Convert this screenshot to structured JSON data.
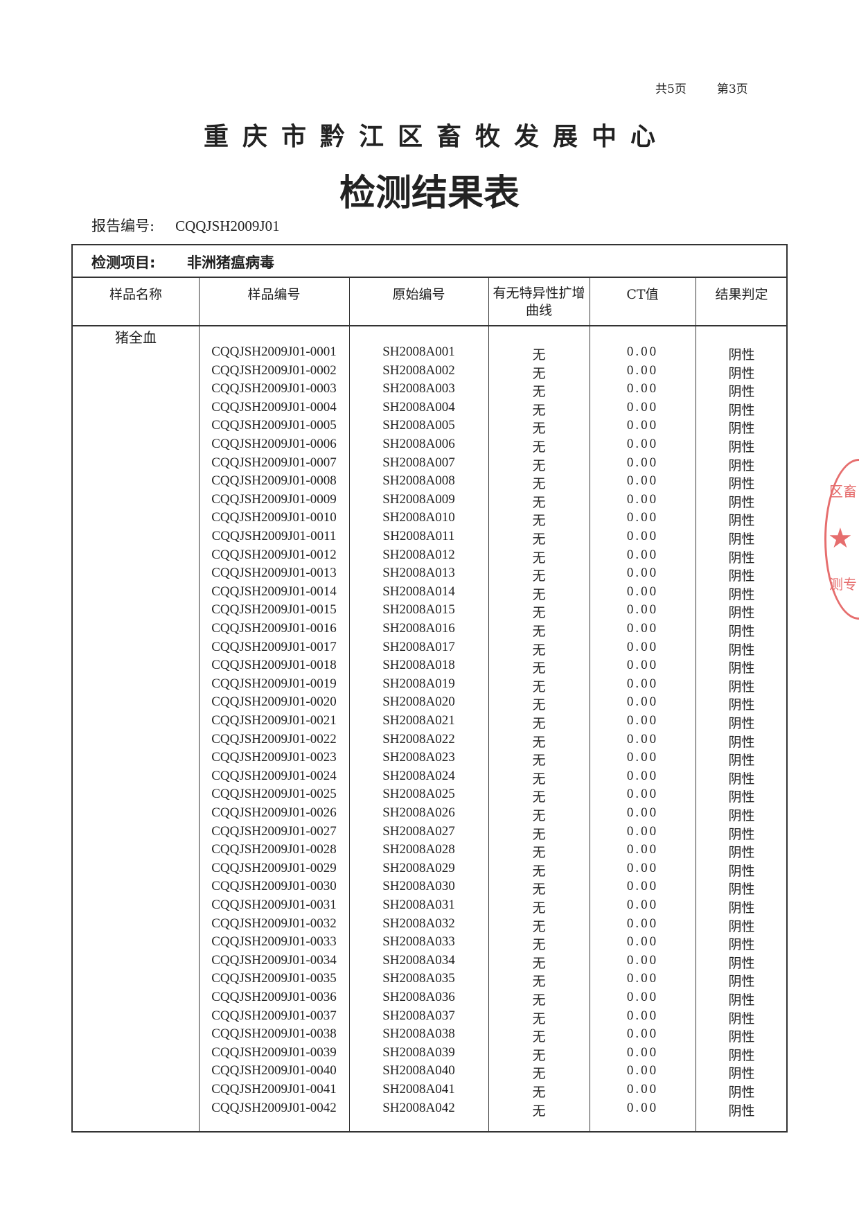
{
  "page_info": {
    "total": "共5页",
    "current": "第3页"
  },
  "organization": "重庆市黔江区畜牧发展中心",
  "title": "检测结果表",
  "report": {
    "label": "报告编号:",
    "value": "CQQJSH2009J01"
  },
  "test_item": {
    "label": "检测项目:",
    "value": "非洲猪瘟病毒"
  },
  "columns": [
    "样品名称",
    "样品编号",
    "原始编号",
    "有无特异性扩增曲线",
    "CT值",
    "结果判定"
  ],
  "sample_name": "猪全血",
  "rows": [
    [
      "CQQJSH2009J01-0001",
      "SH2008A001",
      "无",
      "0.00",
      "阴性"
    ],
    [
      "CQQJSH2009J01-0002",
      "SH2008A002",
      "无",
      "0.00",
      "阴性"
    ],
    [
      "CQQJSH2009J01-0003",
      "SH2008A003",
      "无",
      "0.00",
      "阴性"
    ],
    [
      "CQQJSH2009J01-0004",
      "SH2008A004",
      "无",
      "0.00",
      "阴性"
    ],
    [
      "CQQJSH2009J01-0005",
      "SH2008A005",
      "无",
      "0.00",
      "阴性"
    ],
    [
      "CQQJSH2009J01-0006",
      "SH2008A006",
      "无",
      "0.00",
      "阴性"
    ],
    [
      "CQQJSH2009J01-0007",
      "SH2008A007",
      "无",
      "0.00",
      "阴性"
    ],
    [
      "CQQJSH2009J01-0008",
      "SH2008A008",
      "无",
      "0.00",
      "阴性"
    ],
    [
      "CQQJSH2009J01-0009",
      "SH2008A009",
      "无",
      "0.00",
      "阴性"
    ],
    [
      "CQQJSH2009J01-0010",
      "SH2008A010",
      "无",
      "0.00",
      "阴性"
    ],
    [
      "CQQJSH2009J01-0011",
      "SH2008A011",
      "无",
      "0.00",
      "阴性"
    ],
    [
      "CQQJSH2009J01-0012",
      "SH2008A012",
      "无",
      "0.00",
      "阴性"
    ],
    [
      "CQQJSH2009J01-0013",
      "SH2008A013",
      "无",
      "0.00",
      "阴性"
    ],
    [
      "CQQJSH2009J01-0014",
      "SH2008A014",
      "无",
      "0.00",
      "阴性"
    ],
    [
      "CQQJSH2009J01-0015",
      "SH2008A015",
      "无",
      "0.00",
      "阴性"
    ],
    [
      "CQQJSH2009J01-0016",
      "SH2008A016",
      "无",
      "0.00",
      "阴性"
    ],
    [
      "CQQJSH2009J01-0017",
      "SH2008A017",
      "无",
      "0.00",
      "阴性"
    ],
    [
      "CQQJSH2009J01-0018",
      "SH2008A018",
      "无",
      "0.00",
      "阴性"
    ],
    [
      "CQQJSH2009J01-0019",
      "SH2008A019",
      "无",
      "0.00",
      "阴性"
    ],
    [
      "CQQJSH2009J01-0020",
      "SH2008A020",
      "无",
      "0.00",
      "阴性"
    ],
    [
      "CQQJSH2009J01-0021",
      "SH2008A021",
      "无",
      "0.00",
      "阴性"
    ],
    [
      "CQQJSH2009J01-0022",
      "SH2008A022",
      "无",
      "0.00",
      "阴性"
    ],
    [
      "CQQJSH2009J01-0023",
      "SH2008A023",
      "无",
      "0.00",
      "阴性"
    ],
    [
      "CQQJSH2009J01-0024",
      "SH2008A024",
      "无",
      "0.00",
      "阴性"
    ],
    [
      "CQQJSH2009J01-0025",
      "SH2008A025",
      "无",
      "0.00",
      "阴性"
    ],
    [
      "CQQJSH2009J01-0026",
      "SH2008A026",
      "无",
      "0.00",
      "阴性"
    ],
    [
      "CQQJSH2009J01-0027",
      "SH2008A027",
      "无",
      "0.00",
      "阴性"
    ],
    [
      "CQQJSH2009J01-0028",
      "SH2008A028",
      "无",
      "0.00",
      "阴性"
    ],
    [
      "CQQJSH2009J01-0029",
      "SH2008A029",
      "无",
      "0.00",
      "阴性"
    ],
    [
      "CQQJSH2009J01-0030",
      "SH2008A030",
      "无",
      "0.00",
      "阴性"
    ],
    [
      "CQQJSH2009J01-0031",
      "SH2008A031",
      "无",
      "0.00",
      "阴性"
    ],
    [
      "CQQJSH2009J01-0032",
      "SH2008A032",
      "无",
      "0.00",
      "阴性"
    ],
    [
      "CQQJSH2009J01-0033",
      "SH2008A033",
      "无",
      "0.00",
      "阴性"
    ],
    [
      "CQQJSH2009J01-0034",
      "SH2008A034",
      "无",
      "0.00",
      "阴性"
    ],
    [
      "CQQJSH2009J01-0035",
      "SH2008A035",
      "无",
      "0.00",
      "阴性"
    ],
    [
      "CQQJSH2009J01-0036",
      "SH2008A036",
      "无",
      "0.00",
      "阴性"
    ],
    [
      "CQQJSH2009J01-0037",
      "SH2008A037",
      "无",
      "0.00",
      "阴性"
    ],
    [
      "CQQJSH2009J01-0038",
      "SH2008A038",
      "无",
      "0.00",
      "阴性"
    ],
    [
      "CQQJSH2009J01-0039",
      "SH2008A039",
      "无",
      "0.00",
      "阴性"
    ],
    [
      "CQQJSH2009J01-0040",
      "SH2008A040",
      "无",
      "0.00",
      "阴性"
    ],
    [
      "CQQJSH2009J01-0041",
      "SH2008A041",
      "无",
      "0.00",
      "阴性"
    ],
    [
      "CQQJSH2009J01-0042",
      "SH2008A042",
      "无",
      "0.00",
      "阴性"
    ]
  ],
  "stamp": {
    "text_top": "区畜",
    "text_bottom": "测专",
    "color": "#e25555"
  }
}
